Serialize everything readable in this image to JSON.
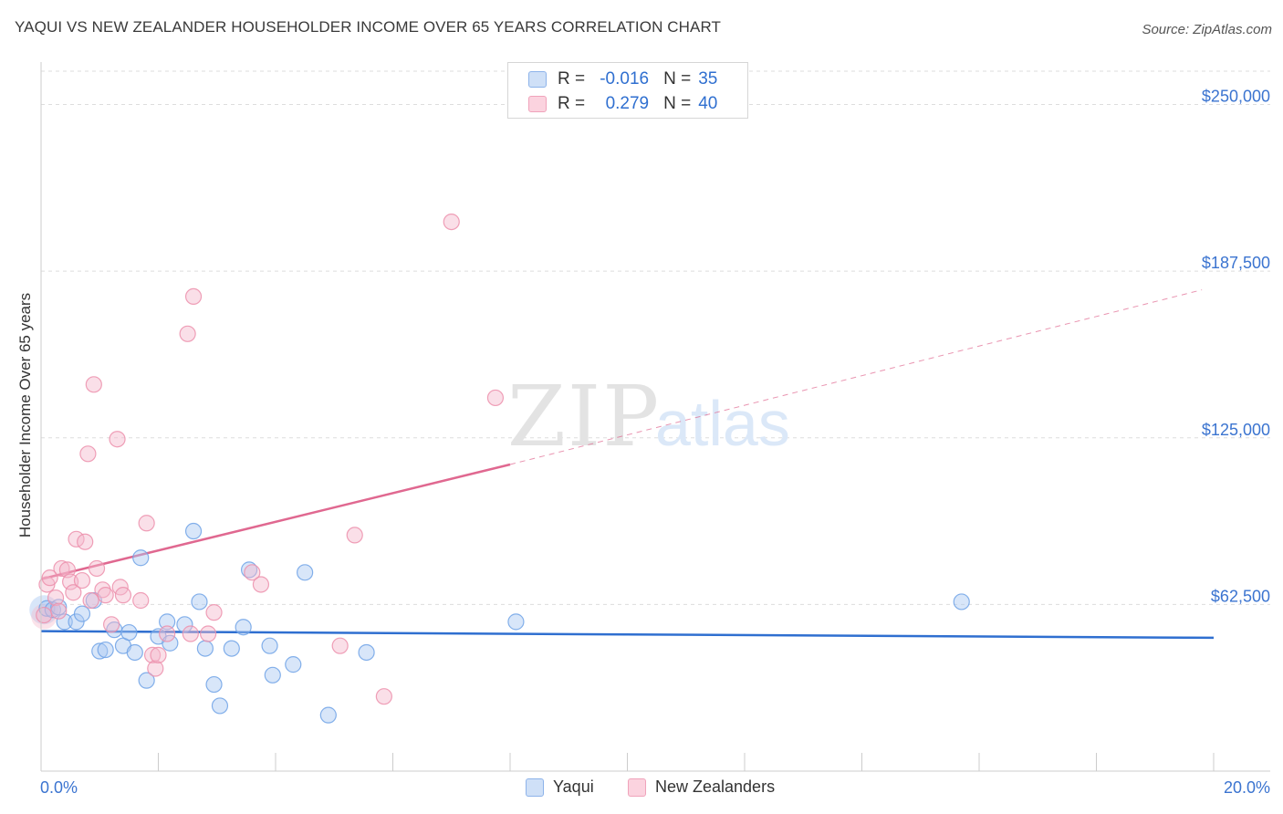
{
  "title": "YAQUI VS NEW ZEALANDER HOUSEHOLDER INCOME OVER 65 YEARS CORRELATION CHART",
  "source": "Source: ZipAtlas.com",
  "watermark": {
    "zip": "ZIP",
    "atlas": "atlas"
  },
  "legend": {
    "r_label": "R =",
    "n_label": "N =",
    "rows": [
      {
        "r": "-0.016",
        "n": "35",
        "color": "#a9c8f2"
      },
      {
        "r": "0.279",
        "n": "40",
        "color": "#f5b8cb"
      }
    ]
  },
  "bottom_legend": [
    {
      "label": "Yaqui",
      "color": "#a9c8f2"
    },
    {
      "label": "New Zealanders",
      "color": "#f5b8cb"
    }
  ],
  "chart_data": {
    "type": "scatter",
    "title": "YAQUI VS NEW ZEALANDER HOUSEHOLDER INCOME OVER 65 YEARS CORRELATION CHART",
    "xlabel": "",
    "ylabel": "Householder Income Over 65 years",
    "xlim": [
      0,
      20
    ],
    "ylim": [
      0,
      262500
    ],
    "x_tick_labels": [
      "0.0%",
      "20.0%"
    ],
    "y_ticks": [
      62500,
      125000,
      187500,
      250000
    ],
    "y_tick_labels": [
      "$62,500",
      "$125,000",
      "$187,500",
      "$250,000"
    ],
    "grid": true,
    "series": [
      {
        "name": "Yaqui",
        "color": "#6fa2e6",
        "fill": "#a9c8f2",
        "trend": {
          "x0": 0,
          "y0": 52500,
          "x1": 20,
          "y1": 50000,
          "dashed_after": 20,
          "color": "#2f6fd0"
        },
        "points": [
          [
            0.1,
            61000
          ],
          [
            0.2,
            60500
          ],
          [
            0.3,
            61500
          ],
          [
            0.4,
            56000
          ],
          [
            0.6,
            56000
          ],
          [
            0.7,
            59000
          ],
          [
            0.9,
            64000
          ],
          [
            1.0,
            45000
          ],
          [
            1.1,
            45500
          ],
          [
            1.25,
            53000
          ],
          [
            1.4,
            47000
          ],
          [
            1.5,
            52000
          ],
          [
            1.6,
            44500
          ],
          [
            1.7,
            80000
          ],
          [
            1.8,
            34000
          ],
          [
            2.0,
            50500
          ],
          [
            2.15,
            56000
          ],
          [
            2.2,
            48000
          ],
          [
            2.45,
            55000
          ],
          [
            2.6,
            90000
          ],
          [
            2.7,
            63500
          ],
          [
            2.8,
            46000
          ],
          [
            2.95,
            32500
          ],
          [
            3.05,
            24500
          ],
          [
            3.25,
            46000
          ],
          [
            3.45,
            54000
          ],
          [
            3.55,
            75500
          ],
          [
            3.9,
            47000
          ],
          [
            3.95,
            36000
          ],
          [
            4.3,
            40000
          ],
          [
            4.5,
            74500
          ],
          [
            4.9,
            21000
          ],
          [
            5.55,
            44500
          ],
          [
            8.1,
            56000
          ],
          [
            15.7,
            63500
          ]
        ]
      },
      {
        "name": "New Zealanders",
        "color": "#ec8fab",
        "fill": "#f5b8cb",
        "trend": {
          "x0": 0,
          "y0": 72000,
          "x1": 8.0,
          "y1": 115000,
          "x_dash_end": 19.8,
          "y_dash_end": 180500,
          "color": "#e06890"
        },
        "points": [
          [
            0.1,
            70000
          ],
          [
            0.15,
            72500
          ],
          [
            0.25,
            65000
          ],
          [
            0.35,
            76000
          ],
          [
            0.45,
            75500
          ],
          [
            0.5,
            71000
          ],
          [
            0.55,
            67000
          ],
          [
            0.6,
            87000
          ],
          [
            0.7,
            71500
          ],
          [
            0.75,
            86000
          ],
          [
            0.8,
            119000
          ],
          [
            0.85,
            64000
          ],
          [
            0.9,
            145000
          ],
          [
            0.95,
            76000
          ],
          [
            1.05,
            68000
          ],
          [
            1.1,
            66000
          ],
          [
            1.2,
            55000
          ],
          [
            1.3,
            124500
          ],
          [
            1.35,
            69000
          ],
          [
            1.4,
            66000
          ],
          [
            1.7,
            64000
          ],
          [
            1.8,
            93000
          ],
          [
            1.9,
            43500
          ],
          [
            1.95,
            38500
          ],
          [
            2.0,
            43500
          ],
          [
            2.15,
            51500
          ],
          [
            2.5,
            164000
          ],
          [
            2.55,
            51500
          ],
          [
            2.6,
            178000
          ],
          [
            2.85,
            51500
          ],
          [
            2.95,
            59500
          ],
          [
            3.6,
            74500
          ],
          [
            3.75,
            70000
          ],
          [
            5.1,
            47000
          ],
          [
            5.35,
            88500
          ],
          [
            5.85,
            28000
          ],
          [
            7.0,
            206000
          ],
          [
            7.75,
            140000
          ],
          [
            0.05,
            58500
          ],
          [
            0.3,
            60000
          ]
        ]
      }
    ]
  }
}
